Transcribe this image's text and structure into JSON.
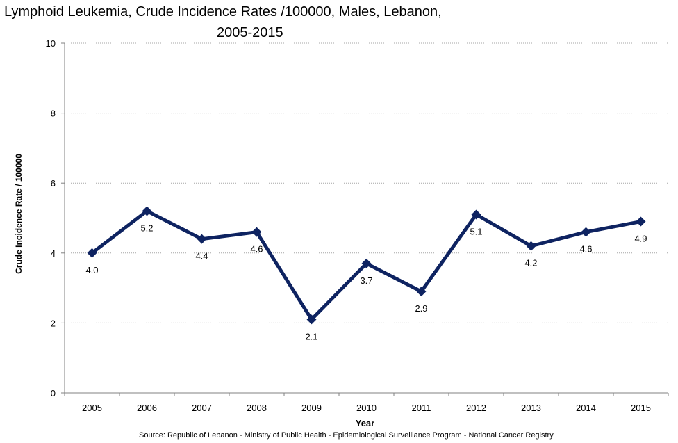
{
  "chart_data": {
    "type": "line",
    "title_lines": [
      "Lymphoid Leukemia, Crude Incidence Rates /100000,  Males, Lebanon,",
      "2005-2015"
    ],
    "xlabel": "Year",
    "ylabel": "Crude Incidence Rate / 100000",
    "categories": [
      "2005",
      "2006",
      "2007",
      "2008",
      "2009",
      "2010",
      "2011",
      "2012",
      "2013",
      "2014",
      "2015"
    ],
    "series": [
      {
        "values": [
          4.0,
          5.2,
          4.4,
          4.6,
          2.1,
          3.7,
          2.9,
          5.1,
          4.2,
          4.6,
          4.9
        ],
        "data_labels": [
          "4.0",
          "5.2",
          "4.4",
          "4.6",
          "2.1",
          "3.7",
          "2.9",
          "5.1",
          "4.2",
          "4.6",
          "4.9"
        ],
        "color": "#0E2361",
        "marker": "diamond"
      }
    ],
    "ylim": [
      0,
      10
    ],
    "yticks": [
      0,
      2,
      4,
      6,
      8,
      10
    ],
    "ytick_labels": [
      "0",
      "2",
      "4",
      "6",
      "8",
      "10"
    ],
    "grid": "horizontal dotted",
    "legend": "none",
    "source": "Source:  Republic of Lebanon - Ministry of Public Health - Epidemiological Surveillance Program - National Cancer Registry"
  }
}
